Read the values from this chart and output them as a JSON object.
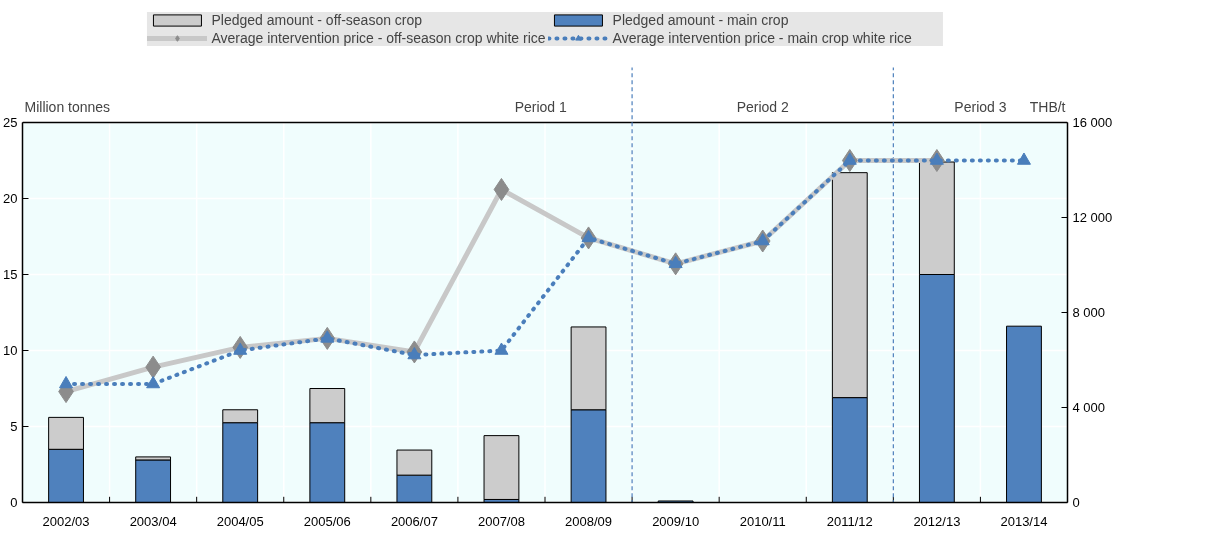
{
  "chart_data": {
    "type": "bar",
    "stacked": true,
    "categories": [
      "2002/03",
      "2003/04",
      "2004/05",
      "2005/06",
      "2006/07",
      "2007/08",
      "2008/09",
      "2009/10",
      "2010/11",
      "2011/12",
      "2012/13",
      "2013/14"
    ],
    "series": [
      {
        "name": "Pledged amount - main crop",
        "color": "#4f81bd",
        "values": [
          3.5,
          2.8,
          5.25,
          5.25,
          1.8,
          0.2,
          6.1,
          0.1,
          null,
          6.9,
          15.0,
          11.6
        ]
      },
      {
        "name": "Pledged amount - off-season crop",
        "color": "#cccccc",
        "values": [
          2.1,
          0.2,
          0.85,
          2.25,
          1.65,
          4.2,
          5.45,
          null,
          null,
          14.8,
          7.4,
          null
        ]
      },
      {
        "name": "Average intervention price - off-season crop white rice",
        "type": "line",
        "axis": "y2",
        "color": "#c8c8c8",
        "marker": "diamond",
        "line_style": "solid",
        "values": [
          4670,
          5700,
          6530,
          6910,
          6340,
          13180,
          11140,
          10050,
          11010,
          14400,
          14400,
          null
        ]
      },
      {
        "name": "Average intervention price - main crop white rice",
        "type": "line",
        "axis": "y2",
        "color": "#4a7ebb",
        "marker": "triangle",
        "line_style": "dotted",
        "values": [
          4990,
          4990,
          6400,
          6910,
          6210,
          6400,
          11140,
          10050,
          11010,
          14400,
          14400,
          14400
        ]
      }
    ],
    "ylabel": "Million tonnes",
    "y2label": "THB/t",
    "ylim": [
      0,
      25
    ],
    "yticks": [
      0,
      5,
      10,
      15,
      20,
      25
    ],
    "y2lim": [
      0,
      16000
    ],
    "y2ticks": [
      {
        "value": 0,
        "label": "0"
      },
      {
        "value": 4000,
        "label": "4 000"
      },
      {
        "value": 8000,
        "label": "8 000"
      },
      {
        "value": 12000,
        "label": "12 000"
      },
      {
        "value": 16000,
        "label": "16 000"
      }
    ],
    "annotations": [
      "Period 1",
      "Period 2",
      "Period 3"
    ],
    "grid": true,
    "legend": "top"
  }
}
